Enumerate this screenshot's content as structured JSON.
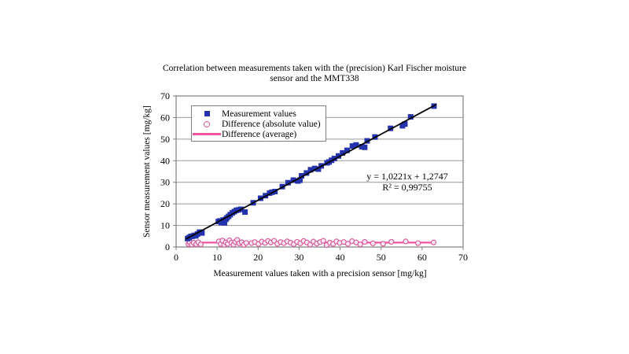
{
  "chart_data": {
    "type": "scatter",
    "title_line1": "Correlation between measurements taken with the (precision) Karl Fischer moisture",
    "title_line2": "sensor and the MMT338",
    "xlabel": "Measurement values taken with a precision sensor [mg/kg]",
    "ylabel": "Sensor measurement values [mg/kg]",
    "xlim": [
      0,
      70
    ],
    "ylim": [
      0,
      70
    ],
    "xticks": [
      0,
      10,
      20,
      30,
      40,
      50,
      60,
      70
    ],
    "yticks": [
      0,
      10,
      20,
      30,
      40,
      50,
      60,
      70
    ],
    "grid": "horizontal",
    "legend_position": "top-left",
    "equation": "y = 1,0221x + 1,2747",
    "r_squared": "R² = 0,99755",
    "colors": {
      "measurement_blue": "#2433AC",
      "difference_pink": "#F4559E",
      "difference_stroke": "#D85C9E",
      "difference_fill": "#FBEAF4",
      "trendline": "#000000",
      "grid": "#999999",
      "axis": "#7F7F7F",
      "text": "#000000"
    },
    "legend": [
      {
        "label": "Measurement values",
        "marker": "square"
      },
      {
        "label": "Difference (absolute value)",
        "marker": "circle"
      },
      {
        "label": "Difference (average)",
        "marker": "line"
      }
    ],
    "series": [
      {
        "id": "difference-average",
        "name": "Difference (average)",
        "type": "line",
        "color": "#F4559E",
        "width": 2.2,
        "points": [
          [
            2.8,
            2.05
          ],
          [
            63.0,
            2.05
          ]
        ]
      },
      {
        "id": "difference-absolute",
        "name": "Difference (absolute value)",
        "type": "scatter",
        "marker": "circle",
        "stroke": "#D85C9E",
        "fill": "#FBEAF4",
        "size": 6,
        "points": [
          [
            3,
            1.4
          ],
          [
            3.3,
            2.2
          ],
          [
            3.8,
            1.1
          ],
          [
            4.3,
            2.0
          ],
          [
            4.9,
            1.3
          ],
          [
            5.4,
            2.2
          ],
          [
            6,
            1.2
          ],
          [
            10.4,
            2.6
          ],
          [
            10.9,
            1.4
          ],
          [
            11.3,
            3.0
          ],
          [
            11.7,
            1.0
          ],
          [
            12.1,
            2.1
          ],
          [
            12.6,
            1.5
          ],
          [
            13,
            3.1
          ],
          [
            13.5,
            2.0
          ],
          [
            14,
            1.1
          ],
          [
            14.4,
            2.4
          ],
          [
            14.9,
            3.3
          ],
          [
            15.4,
            1.7
          ],
          [
            16,
            2.2
          ],
          [
            16.5,
            1.0
          ],
          [
            17.1,
            1.9
          ],
          [
            18.4,
            1.8
          ],
          [
            19.2,
            2.3
          ],
          [
            20.1,
            1.4
          ],
          [
            20.9,
            2.5
          ],
          [
            21.7,
            1.9
          ],
          [
            22.4,
            2.8
          ],
          [
            23.1,
            2.1
          ],
          [
            23.9,
            2.9
          ],
          [
            24.7,
            1.5
          ],
          [
            25.5,
            2.3
          ],
          [
            26.3,
            1.8
          ],
          [
            27.1,
            2.6
          ],
          [
            27.9,
            2.0
          ],
          [
            28.7,
            1.3
          ],
          [
            29.5,
            2.4
          ],
          [
            30.3,
            1.7
          ],
          [
            31.1,
            2.8
          ],
          [
            31.9,
            2.1
          ],
          [
            32.7,
            1.1
          ],
          [
            33.5,
            2.5
          ],
          [
            34.3,
            1.6
          ],
          [
            35.1,
            2.3
          ],
          [
            35.9,
            2.9
          ],
          [
            36.7,
            0.9
          ],
          [
            37.5,
            2.0
          ],
          [
            38.3,
            1.4
          ],
          [
            39.1,
            2.6
          ],
          [
            39.9,
            1.9
          ],
          [
            40.9,
            2.3
          ],
          [
            41.9,
            1.5
          ],
          [
            42.9,
            2.7
          ],
          [
            43.9,
            2.1
          ],
          [
            44.9,
            1.2
          ],
          [
            46,
            2.4
          ],
          [
            48,
            1.7
          ],
          [
            50.5,
            1.5
          ],
          [
            52.5,
            2.4
          ],
          [
            56,
            2.6
          ],
          [
            59,
            1.8
          ],
          [
            62.8,
            2.1
          ]
        ]
      },
      {
        "id": "measurement-values",
        "name": "Measurement values",
        "type": "scatter",
        "marker": "square",
        "color": "#2433AC",
        "size": 7,
        "points": [
          [
            2.8,
            3.9
          ],
          [
            3.2,
            4.4
          ],
          [
            3.6,
            4.9
          ],
          [
            4.0,
            5.0
          ],
          [
            4.4,
            5.4
          ],
          [
            4.8,
            5.2
          ],
          [
            5.2,
            6.0
          ],
          [
            5.7,
            6.9
          ],
          [
            6.3,
            6.5
          ],
          [
            10.3,
            11.8
          ],
          [
            10.7,
            12.1
          ],
          [
            11.0,
            11.3
          ],
          [
            11.3,
            11.6
          ],
          [
            11.5,
            12.5
          ],
          [
            11.8,
            11.2
          ],
          [
            12.1,
            12.8
          ],
          [
            12.4,
            13.5
          ],
          [
            12.8,
            14.2
          ],
          [
            13.2,
            15.0
          ],
          [
            13.7,
            15.8
          ],
          [
            14.2,
            16.4
          ],
          [
            14.7,
            17.0
          ],
          [
            15.2,
            17.2
          ],
          [
            15.8,
            17.5
          ],
          [
            16.8,
            16.2
          ],
          [
            18.8,
            20.5
          ],
          [
            20.6,
            22.6
          ],
          [
            21.8,
            23.8
          ],
          [
            22.8,
            25.0
          ],
          [
            23.4,
            25.4
          ],
          [
            24.1,
            25.7
          ],
          [
            25.9,
            28.0
          ],
          [
            27.3,
            29.8
          ],
          [
            28.6,
            31.0
          ],
          [
            29.7,
            30.6
          ],
          [
            30.2,
            31.0
          ],
          [
            30.6,
            33.0
          ],
          [
            31.8,
            34.3
          ],
          [
            32.8,
            35.8
          ],
          [
            33.8,
            36.4
          ],
          [
            34.7,
            36.1
          ],
          [
            35.4,
            37.6
          ],
          [
            36.8,
            39.0
          ],
          [
            37.3,
            39.4
          ],
          [
            37.9,
            40.2
          ],
          [
            38.6,
            41.0
          ],
          [
            39.6,
            42.2
          ],
          [
            40.6,
            43.6
          ],
          [
            41.7,
            44.8
          ],
          [
            43.0,
            46.8
          ],
          [
            43.9,
            47.3
          ],
          [
            45.3,
            46.5
          ],
          [
            46.0,
            46.2
          ],
          [
            46.6,
            49.2
          ],
          [
            48.5,
            51.0
          ],
          [
            52.3,
            55.0
          ],
          [
            55.2,
            56.2
          ],
          [
            55.8,
            57.0
          ],
          [
            57.2,
            60.3
          ],
          [
            62.9,
            65.3
          ]
        ]
      },
      {
        "id": "trendline",
        "name": "trendline",
        "type": "line",
        "color": "#000000",
        "width": 1.8,
        "points": [
          [
            2.5,
            3.8
          ],
          [
            63.4,
            66.0
          ]
        ]
      }
    ]
  }
}
